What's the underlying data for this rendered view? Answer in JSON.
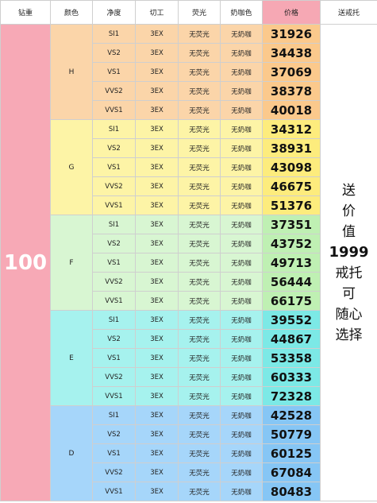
{
  "header": {
    "weight": "钻重",
    "color": "颜色",
    "clarity": "净度",
    "cut": "切工",
    "fluorescence": "荧光",
    "milky": "奶咖色",
    "price": "价格",
    "gift": "送戒托"
  },
  "weight_value": "100",
  "gift_lines": [
    "送",
    "价",
    "值",
    "1999",
    "戒托",
    "可",
    "随心",
    "选择"
  ],
  "colors": {
    "header_price_bg": "#f6a8b4",
    "weight_bg": "#f7a9b6",
    "H_row": "#fbd5a9",
    "H_price": "#fbc98c",
    "G_row": "#fdf4a6",
    "G_price": "#fdec7d",
    "F_row": "#d8f6d2",
    "F_price": "#bff0b3",
    "E_row": "#a6f2ee",
    "E_price": "#7ce9e6",
    "D_row": "#a6d6fa",
    "D_price": "#86c6f5"
  },
  "groups": [
    {
      "color": "H",
      "rows": [
        {
          "clarity": "SI1",
          "cut": "3EX",
          "fluorescence": "无荧光",
          "milky": "无奶咖",
          "price": "31926"
        },
        {
          "clarity": "VS2",
          "cut": "3EX",
          "fluorescence": "无荧光",
          "milky": "无奶咖",
          "price": "34438"
        },
        {
          "clarity": "VS1",
          "cut": "3EX",
          "fluorescence": "无荧光",
          "milky": "无奶咖",
          "price": "37069"
        },
        {
          "clarity": "VVS2",
          "cut": "3EX",
          "fluorescence": "无荧光",
          "milky": "无奶咖",
          "price": "38378"
        },
        {
          "clarity": "VVS1",
          "cut": "3EX",
          "fluorescence": "无荧光",
          "milky": "无奶咖",
          "price": "40018"
        }
      ]
    },
    {
      "color": "G",
      "rows": [
        {
          "clarity": "SI1",
          "cut": "3EX",
          "fluorescence": "无荧光",
          "milky": "无奶咖",
          "price": "34312"
        },
        {
          "clarity": "VS2",
          "cut": "3EX",
          "fluorescence": "无荧光",
          "milky": "无奶咖",
          "price": "38931"
        },
        {
          "clarity": "VS1",
          "cut": "3EX",
          "fluorescence": "无荧光",
          "milky": "无奶咖",
          "price": "43098"
        },
        {
          "clarity": "VVS2",
          "cut": "3EX",
          "fluorescence": "无荧光",
          "milky": "无奶咖",
          "price": "46675"
        },
        {
          "clarity": "VVS1",
          "cut": "3EX",
          "fluorescence": "无荧光",
          "milky": "无奶咖",
          "price": "51376"
        }
      ]
    },
    {
      "color": "F",
      "rows": [
        {
          "clarity": "SI1",
          "cut": "3EX",
          "fluorescence": "无荧光",
          "milky": "无奶咖",
          "price": "37351"
        },
        {
          "clarity": "VS2",
          "cut": "3EX",
          "fluorescence": "无荧光",
          "milky": "无奶咖",
          "price": "43752"
        },
        {
          "clarity": "VS1",
          "cut": "3EX",
          "fluorescence": "无荧光",
          "milky": "无奶咖",
          "price": "49713"
        },
        {
          "clarity": "VVS2",
          "cut": "3EX",
          "fluorescence": "无荧光",
          "milky": "无奶咖",
          "price": "56444"
        },
        {
          "clarity": "VVS1",
          "cut": "3EX",
          "fluorescence": "无荧光",
          "milky": "无奶咖",
          "price": "66175"
        }
      ]
    },
    {
      "color": "E",
      "rows": [
        {
          "clarity": "SI1",
          "cut": "3EX",
          "fluorescence": "无荧光",
          "milky": "无奶咖",
          "price": "39552"
        },
        {
          "clarity": "VS2",
          "cut": "3EX",
          "fluorescence": "无荧光",
          "milky": "无奶咖",
          "price": "44867"
        },
        {
          "clarity": "VS1",
          "cut": "3EX",
          "fluorescence": "无荧光",
          "milky": "无奶咖",
          "price": "53358"
        },
        {
          "clarity": "VVS2",
          "cut": "3EX",
          "fluorescence": "无荧光",
          "milky": "无奶咖",
          "price": "60333"
        },
        {
          "clarity": "VVS1",
          "cut": "3EX",
          "fluorescence": "无荧光",
          "milky": "无奶咖",
          "price": "72328"
        }
      ]
    },
    {
      "color": "D",
      "rows": [
        {
          "clarity": "SI1",
          "cut": "3EX",
          "fluorescence": "无荧光",
          "milky": "无奶咖",
          "price": "42528"
        },
        {
          "clarity": "VS2",
          "cut": "3EX",
          "fluorescence": "无荧光",
          "milky": "无奶咖",
          "price": "50779"
        },
        {
          "clarity": "VS1",
          "cut": "3EX",
          "fluorescence": "无荧光",
          "milky": "无奶咖",
          "price": "60125"
        },
        {
          "clarity": "VVS2",
          "cut": "3EX",
          "fluorescence": "无荧光",
          "milky": "无奶咖",
          "price": "67084"
        },
        {
          "clarity": "VVS1",
          "cut": "3EX",
          "fluorescence": "无荧光",
          "milky": "无奶咖",
          "price": "80483"
        }
      ]
    }
  ]
}
